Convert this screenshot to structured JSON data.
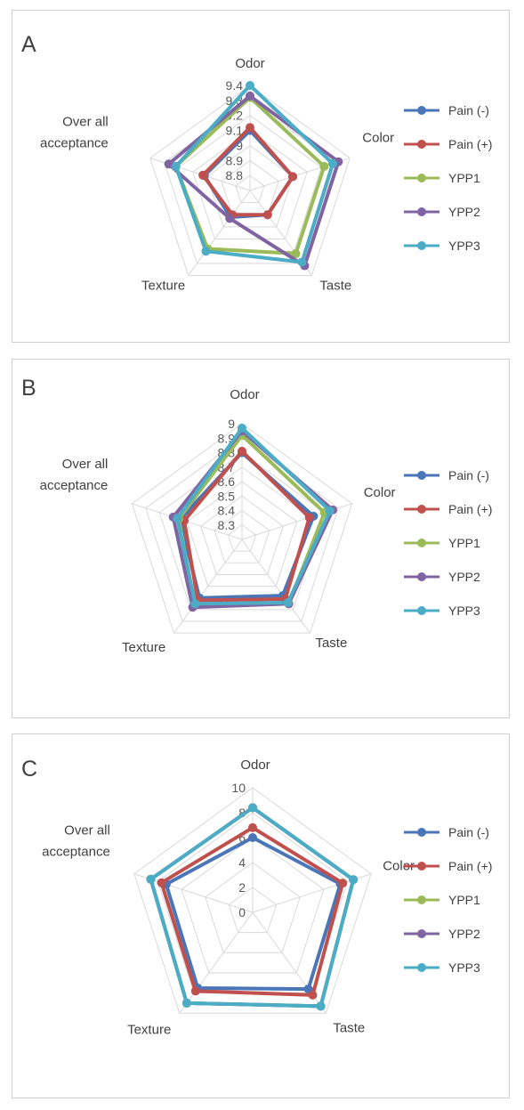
{
  "series_colors": [
    "#4a76b8",
    "#c0504d",
    "#9bbb59",
    "#8064a2",
    "#4bacc6"
  ],
  "chart_data": [
    {
      "type": "radar",
      "panel_label": "A",
      "axes": [
        "Odor",
        "Color",
        "Taste",
        "Texture",
        "Over all acceptance"
      ],
      "axis_label_lines": [
        [
          "Odor"
        ],
        [
          "Color"
        ],
        [
          "Taste"
        ],
        [
          "Texture"
        ],
        [
          "Over all",
          "acceptance"
        ]
      ],
      "ticks": [
        "8.8",
        "8.9",
        "9",
        "9.1",
        "9.2",
        "9.3",
        "9.4"
      ],
      "rmin": 8.7,
      "rmax": 9.4,
      "legend_position": "right",
      "series": [
        {
          "name": "Pain (-)",
          "values": [
            9.1,
            9.0,
            8.9,
            8.92,
            9.02
          ]
        },
        {
          "name": "Pain (+)",
          "values": [
            9.12,
            9.0,
            8.9,
            8.9,
            9.03
          ]
        },
        {
          "name": "YPP1",
          "values": [
            9.32,
            9.22,
            9.22,
            9.18,
            9.22
          ]
        },
        {
          "name": "YPP2",
          "values": [
            9.33,
            9.32,
            9.32,
            8.93,
            9.27
          ]
        },
        {
          "name": "YPP3",
          "values": [
            9.4,
            9.28,
            9.29,
            9.2,
            9.22
          ]
        }
      ]
    },
    {
      "type": "radar",
      "panel_label": "B",
      "axes": [
        "Odor",
        "Color",
        "Taste",
        "Texture",
        "Over all acceptance"
      ],
      "axis_label_lines": [
        [
          "Odor"
        ],
        [
          "Color"
        ],
        [
          "Taste"
        ],
        [
          "Texture"
        ],
        [
          "Over all",
          "acceptance"
        ]
      ],
      "ticks": [
        "8.3",
        "8.4",
        "8.5",
        "8.6",
        "8.7",
        "8.8",
        "8.9",
        "9"
      ],
      "rmin": 8.2,
      "rmax": 9.0,
      "legend_position": "right",
      "series": [
        {
          "name": "Pain (-)",
          "values": [
            8.8,
            8.72,
            8.68,
            8.7,
            8.65
          ]
        },
        {
          "name": "Pain (+)",
          "values": [
            8.81,
            8.69,
            8.71,
            8.72,
            8.62
          ]
        },
        {
          "name": "YPP1",
          "values": [
            8.92,
            8.8,
            8.75,
            8.76,
            8.66
          ]
        },
        {
          "name": "YPP2",
          "values": [
            8.95,
            8.86,
            8.75,
            8.78,
            8.7
          ]
        },
        {
          "name": "YPP3",
          "values": [
            8.97,
            8.84,
            8.74,
            8.75,
            8.67
          ]
        }
      ]
    },
    {
      "type": "radar",
      "panel_label": "C",
      "axes": [
        "Odor",
        "Color",
        "Taste",
        "Texture",
        "Over all acceptance"
      ],
      "axis_label_lines": [
        [
          "Odor"
        ],
        [
          "Color"
        ],
        [
          "Taste"
        ],
        [
          "Texture"
        ],
        [
          "Over all",
          "acceptance"
        ]
      ],
      "ticks": [
        "0",
        "2",
        "4",
        "6",
        "8",
        "10"
      ],
      "rmin": 0,
      "rmax": 10,
      "legend_position": "right",
      "series": [
        {
          "name": "Pain (-)",
          "values": [
            6.0,
            7.4,
            7.6,
            7.5,
            7.3
          ]
        },
        {
          "name": "Pain (+)",
          "values": [
            6.8,
            7.6,
            8.2,
            7.8,
            7.7
          ]
        },
        {
          "name": "YPP1",
          "values": [
            8.4,
            8.5,
            9.3,
            9.0,
            8.6
          ]
        },
        {
          "name": "YPP2",
          "values": [
            8.4,
            8.5,
            9.3,
            9.0,
            8.6
          ]
        },
        {
          "name": "YPP3",
          "values": [
            8.4,
            8.5,
            9.3,
            9.0,
            8.6
          ]
        }
      ]
    }
  ]
}
